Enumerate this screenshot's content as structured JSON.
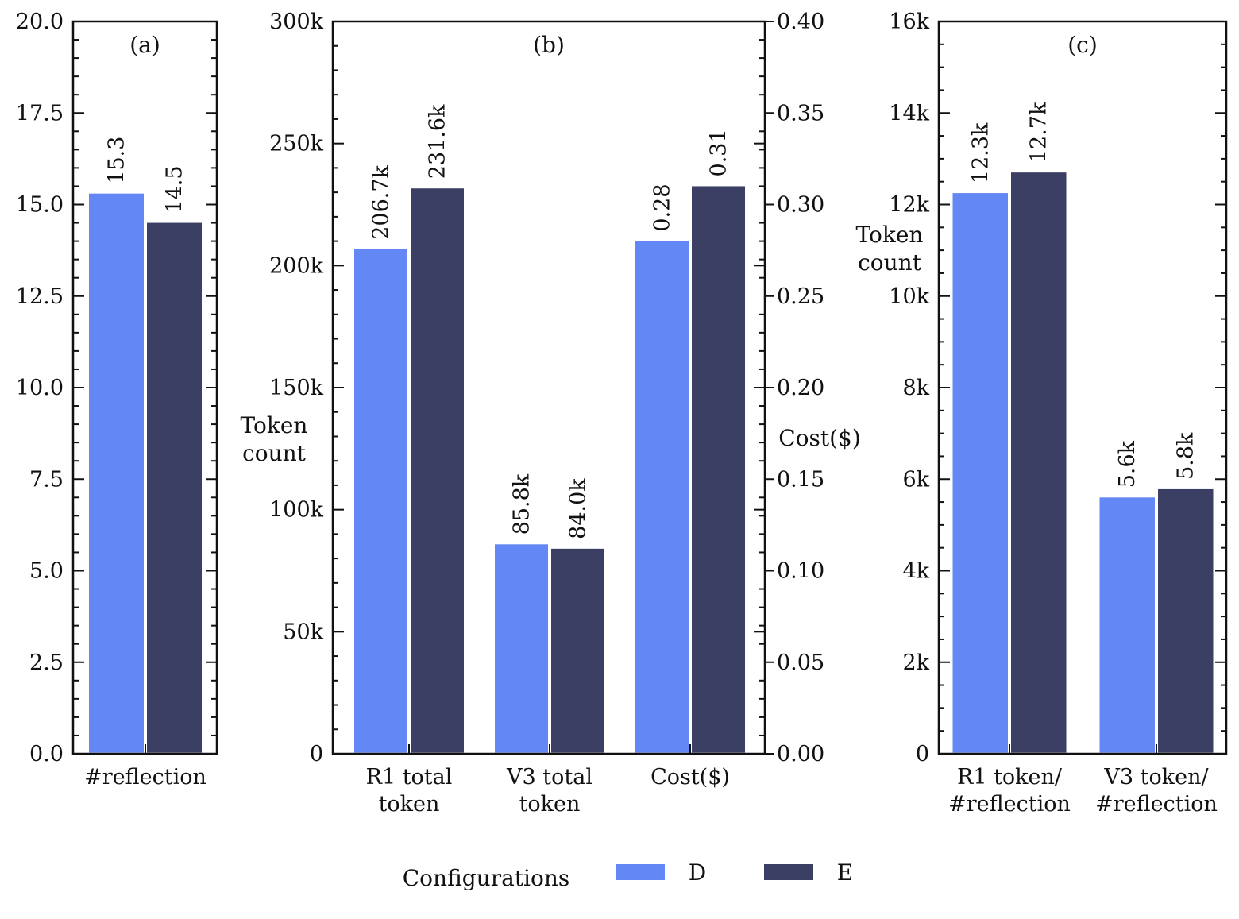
{
  "legend": {
    "title": "Configurations",
    "items": [
      {
        "name": "D",
        "color": "#6388f6"
      },
      {
        "name": "E",
        "color": "#3a3f63"
      }
    ]
  },
  "chart_data": [
    {
      "type": "bar",
      "panel": "(a)",
      "categories": [
        "#reflection"
      ],
      "series": [
        {
          "name": "D",
          "values": [
            15.3
          ],
          "labels": [
            "15.3"
          ]
        },
        {
          "name": "E",
          "values": [
            14.5
          ],
          "labels": [
            "14.5"
          ]
        }
      ],
      "ylim": [
        0,
        20
      ],
      "yticks": [
        0,
        2.5,
        5,
        7.5,
        10,
        12.5,
        15,
        17.5,
        20
      ],
      "ytick_labels": [
        "0.0",
        "2.5",
        "5.0",
        "7.5",
        "10.0",
        "12.5",
        "15.0",
        "17.5",
        "20.0"
      ],
      "ylabel": ""
    },
    {
      "type": "bar",
      "panel": "(b)",
      "categories": [
        "R1 total\ntoken",
        "V3 total\ntoken",
        "Cost($)"
      ],
      "series": [
        {
          "name": "D",
          "values": [
            206700,
            85800,
            0.28
          ],
          "labels": [
            "206.7k",
            "85.8k",
            "0.28"
          ]
        },
        {
          "name": "E",
          "values": [
            231600,
            84000,
            0.31
          ],
          "labels": [
            "231.6k",
            "84.0k",
            "0.31"
          ]
        }
      ],
      "ylabel": "Token\ncount",
      "ylim": [
        0,
        300000
      ],
      "yticks": [
        0,
        50000,
        100000,
        150000,
        200000,
        250000,
        300000
      ],
      "ytick_labels": [
        "0",
        "50k",
        "100k",
        "150k",
        "200k",
        "250k",
        "300k"
      ],
      "y2label": "Cost($)",
      "y2lim": [
        0,
        0.4
      ],
      "y2ticks": [
        0,
        0.05,
        0.1,
        0.15,
        0.2,
        0.25,
        0.3,
        0.35,
        0.4
      ],
      "y2tick_labels": [
        "0.00",
        "0.05",
        "0.10",
        "0.15",
        "0.20",
        "0.25",
        "0.30",
        "0.35",
        "0.40"
      ],
      "secondary_axis_categories": [
        "Cost($)"
      ]
    },
    {
      "type": "bar",
      "panel": "(c)",
      "categories": [
        "R1 token/\n#reflection",
        "V3 token/\n#reflection"
      ],
      "series": [
        {
          "name": "D",
          "values": [
            12250,
            5600
          ],
          "labels": [
            "12.3k",
            "5.6k"
          ]
        },
        {
          "name": "E",
          "values": [
            12700,
            5780
          ],
          "labels": [
            "12.7k",
            "5.8k"
          ]
        }
      ],
      "ylabel": "Token\ncount",
      "ylim": [
        0,
        16000
      ],
      "yticks": [
        0,
        2000,
        4000,
        6000,
        8000,
        10000,
        12000,
        14000,
        16000
      ],
      "ytick_labels": [
        "0",
        "2k",
        "4k",
        "6k",
        "8k",
        "10k",
        "12k",
        "14k",
        "16k"
      ]
    }
  ]
}
